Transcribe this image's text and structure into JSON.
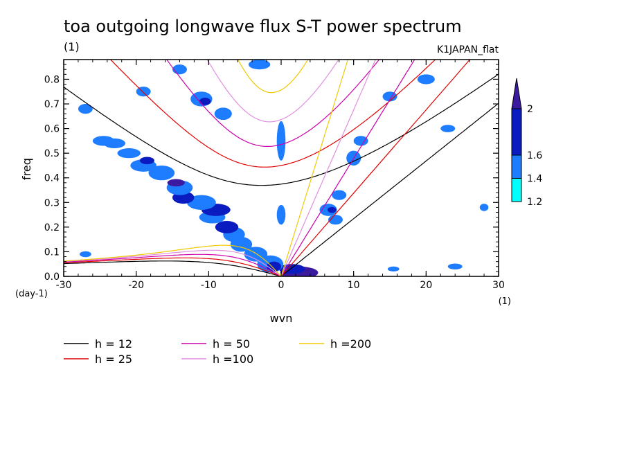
{
  "chart_data": {
    "type": "heatmap",
    "title": "toa outgoing longwave flux S-T power spectrum",
    "subtitle_left": "(1)",
    "subtitle_right": "K1JAPAN_flat",
    "xlabel": "wvn",
    "ylabel": "freq",
    "x_unit": "(1)",
    "y_unit": "(day-1)",
    "xlim": [
      -30,
      30
    ],
    "ylim": [
      0,
      0.88
    ],
    "x_ticks": [
      -30,
      -20,
      -10,
      0,
      10,
      20,
      30
    ],
    "x_tick_labels": [
      "-30",
      "-20",
      "-10",
      "0",
      "10",
      "20",
      "30"
    ],
    "y_ticks": [
      0,
      0.1,
      0.2,
      0.3,
      0.4,
      0.5,
      0.6,
      0.7,
      0.8
    ],
    "y_tick_labels": [
      "0.0",
      "0.1",
      "0.2",
      "0.3",
      "0.4",
      "0.5",
      "0.6",
      "0.7",
      "0.8"
    ],
    "colorbar": {
      "levels": [
        1.2,
        1.4,
        1.6,
        2
      ],
      "labels": [
        "1.2",
        "1.4",
        "1.6",
        "2"
      ],
      "colors": [
        "#00ffff",
        "#1e7cff",
        "#0a1cc0",
        "#3c1aa0"
      ]
    },
    "blobs": [
      {
        "x": 2.5,
        "y": 0.015,
        "rx": 2.6,
        "ry": 0.025,
        "level": 3
      },
      {
        "x": 1.5,
        "y": 0.03,
        "rx": 1.8,
        "ry": 0.02,
        "level": 2
      },
      {
        "x": -1.5,
        "y": 0.05,
        "rx": 1.8,
        "ry": 0.035,
        "level": 1
      },
      {
        "x": -1.0,
        "y": 0.04,
        "rx": 1.0,
        "ry": 0.02,
        "level": 2
      },
      {
        "x": -3.5,
        "y": 0.09,
        "rx": 1.6,
        "ry": 0.03,
        "level": 1
      },
      {
        "x": -5.5,
        "y": 0.13,
        "rx": 1.5,
        "ry": 0.03,
        "level": 1
      },
      {
        "x": -6.5,
        "y": 0.17,
        "rx": 1.5,
        "ry": 0.03,
        "level": 1
      },
      {
        "x": -7.5,
        "y": 0.2,
        "rx": 1.6,
        "ry": 0.025,
        "level": 2
      },
      {
        "x": -9.5,
        "y": 0.24,
        "rx": 1.8,
        "ry": 0.025,
        "level": 1
      },
      {
        "x": -9.0,
        "y": 0.27,
        "rx": 2.0,
        "ry": 0.025,
        "level": 2
      },
      {
        "x": -11.0,
        "y": 0.3,
        "rx": 2.0,
        "ry": 0.03,
        "level": 1
      },
      {
        "x": -13.5,
        "y": 0.32,
        "rx": 1.5,
        "ry": 0.025,
        "level": 2
      },
      {
        "x": -14.0,
        "y": 0.36,
        "rx": 1.8,
        "ry": 0.03,
        "level": 1
      },
      {
        "x": -14.5,
        "y": 0.38,
        "rx": 1.2,
        "ry": 0.015,
        "level": 3
      },
      {
        "x": -16.5,
        "y": 0.42,
        "rx": 1.8,
        "ry": 0.03,
        "level": 1
      },
      {
        "x": -19.0,
        "y": 0.45,
        "rx": 1.8,
        "ry": 0.025,
        "level": 1
      },
      {
        "x": -18.5,
        "y": 0.47,
        "rx": 1.0,
        "ry": 0.015,
        "level": 2
      },
      {
        "x": -21.0,
        "y": 0.5,
        "rx": 1.6,
        "ry": 0.02,
        "level": 1
      },
      {
        "x": -23.0,
        "y": 0.54,
        "rx": 1.5,
        "ry": 0.02,
        "level": 1
      },
      {
        "x": -24.5,
        "y": 0.55,
        "rx": 1.5,
        "ry": 0.02,
        "level": 1
      },
      {
        "x": -11.0,
        "y": 0.72,
        "rx": 1.5,
        "ry": 0.03,
        "level": 1
      },
      {
        "x": -10.5,
        "y": 0.71,
        "rx": 0.8,
        "ry": 0.015,
        "level": 2
      },
      {
        "x": -8.0,
        "y": 0.66,
        "rx": 1.2,
        "ry": 0.025,
        "level": 1
      },
      {
        "x": -19.0,
        "y": 0.75,
        "rx": 1.0,
        "ry": 0.02,
        "level": 1
      },
      {
        "x": -27.0,
        "y": 0.68,
        "rx": 1.0,
        "ry": 0.02,
        "level": 1
      },
      {
        "x": -3.0,
        "y": 0.86,
        "rx": 1.5,
        "ry": 0.02,
        "level": 1
      },
      {
        "x": -14.0,
        "y": 0.84,
        "rx": 1.0,
        "ry": 0.02,
        "level": 1
      },
      {
        "x": 6.5,
        "y": 0.27,
        "rx": 1.2,
        "ry": 0.025,
        "level": 1
      },
      {
        "x": 7.0,
        "y": 0.27,
        "rx": 0.6,
        "ry": 0.012,
        "level": 2
      },
      {
        "x": 8.0,
        "y": 0.33,
        "rx": 1.0,
        "ry": 0.02,
        "level": 1
      },
      {
        "x": 7.5,
        "y": 0.23,
        "rx": 1.0,
        "ry": 0.02,
        "level": 1
      },
      {
        "x": 10.0,
        "y": 0.48,
        "rx": 1.0,
        "ry": 0.03,
        "level": 1
      },
      {
        "x": 11.0,
        "y": 0.55,
        "rx": 1.0,
        "ry": 0.02,
        "level": 1
      },
      {
        "x": 15.0,
        "y": 0.73,
        "rx": 1.0,
        "ry": 0.02,
        "level": 1
      },
      {
        "x": 20.0,
        "y": 0.8,
        "rx": 1.2,
        "ry": 0.02,
        "level": 1
      },
      {
        "x": 0.0,
        "y": 0.55,
        "rx": 0.6,
        "ry": 0.08,
        "level": 1
      },
      {
        "x": 0.0,
        "y": 0.25,
        "rx": 0.6,
        "ry": 0.04,
        "level": 1
      },
      {
        "x": 23.0,
        "y": 0.6,
        "rx": 1.0,
        "ry": 0.015,
        "level": 1
      },
      {
        "x": 15.5,
        "y": 0.03,
        "rx": 0.8,
        "ry": 0.01,
        "level": 1
      },
      {
        "x": 24.0,
        "y": 0.04,
        "rx": 1.0,
        "ry": 0.012,
        "level": 1
      },
      {
        "x": -27.0,
        "y": 0.09,
        "rx": 0.8,
        "ry": 0.012,
        "level": 1
      },
      {
        "x": 28.0,
        "y": 0.28,
        "rx": 0.6,
        "ry": 0.015,
        "level": 1
      }
    ],
    "dispersion_curves": [
      {
        "name": "h = 12",
        "h": 12,
        "color": "#000000"
      },
      {
        "name": "h = 25",
        "h": 25,
        "color": "#e00000"
      },
      {
        "name": "h = 50",
        "h": 50,
        "color": "#cc00aa"
      },
      {
        "name": "h =100",
        "h": 100,
        "color": "#e08ee0"
      },
      {
        "name": "h =200",
        "h": 200,
        "color": "#f0c800"
      }
    ],
    "legend": [
      {
        "label": "h = 12",
        "color": "#000000"
      },
      {
        "label": "h = 25",
        "color": "#e00000"
      },
      {
        "label": "h = 50",
        "color": "#cc00aa"
      },
      {
        "label": "h =100",
        "color": "#e08ee0"
      },
      {
        "label": "h =200",
        "color": "#f0c800"
      }
    ]
  }
}
